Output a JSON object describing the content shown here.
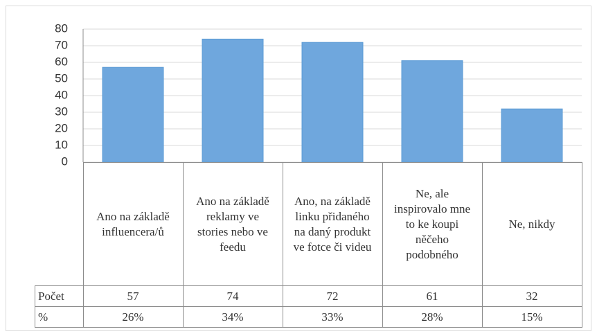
{
  "chart_data": {
    "type": "bar",
    "categories": [
      "Ano na základě influencera/ů",
      "Ano na základě reklamy ve stories nebo ve feedu",
      "Ano, na základě linku přidaného na daný produkt ve fotce či videu",
      "Ne, ale inspirovalo mne to ke koupi něčeho podobného",
      "Ne, nikdy"
    ],
    "series": [
      {
        "name": "Počet",
        "color": "#6fa7dd",
        "values": [
          57,
          74,
          72,
          61,
          32
        ]
      }
    ],
    "table_rows": [
      {
        "name": "%",
        "values": [
          26,
          34,
          33,
          28,
          15
        ],
        "value_labels": [
          "26%",
          "34%",
          "33%",
          "28%",
          "15%"
        ]
      }
    ],
    "ylim": [
      0,
      80
    ],
    "yticks": [
      0,
      10,
      20,
      30,
      40,
      50,
      60,
      70,
      80
    ],
    "grid": true
  }
}
